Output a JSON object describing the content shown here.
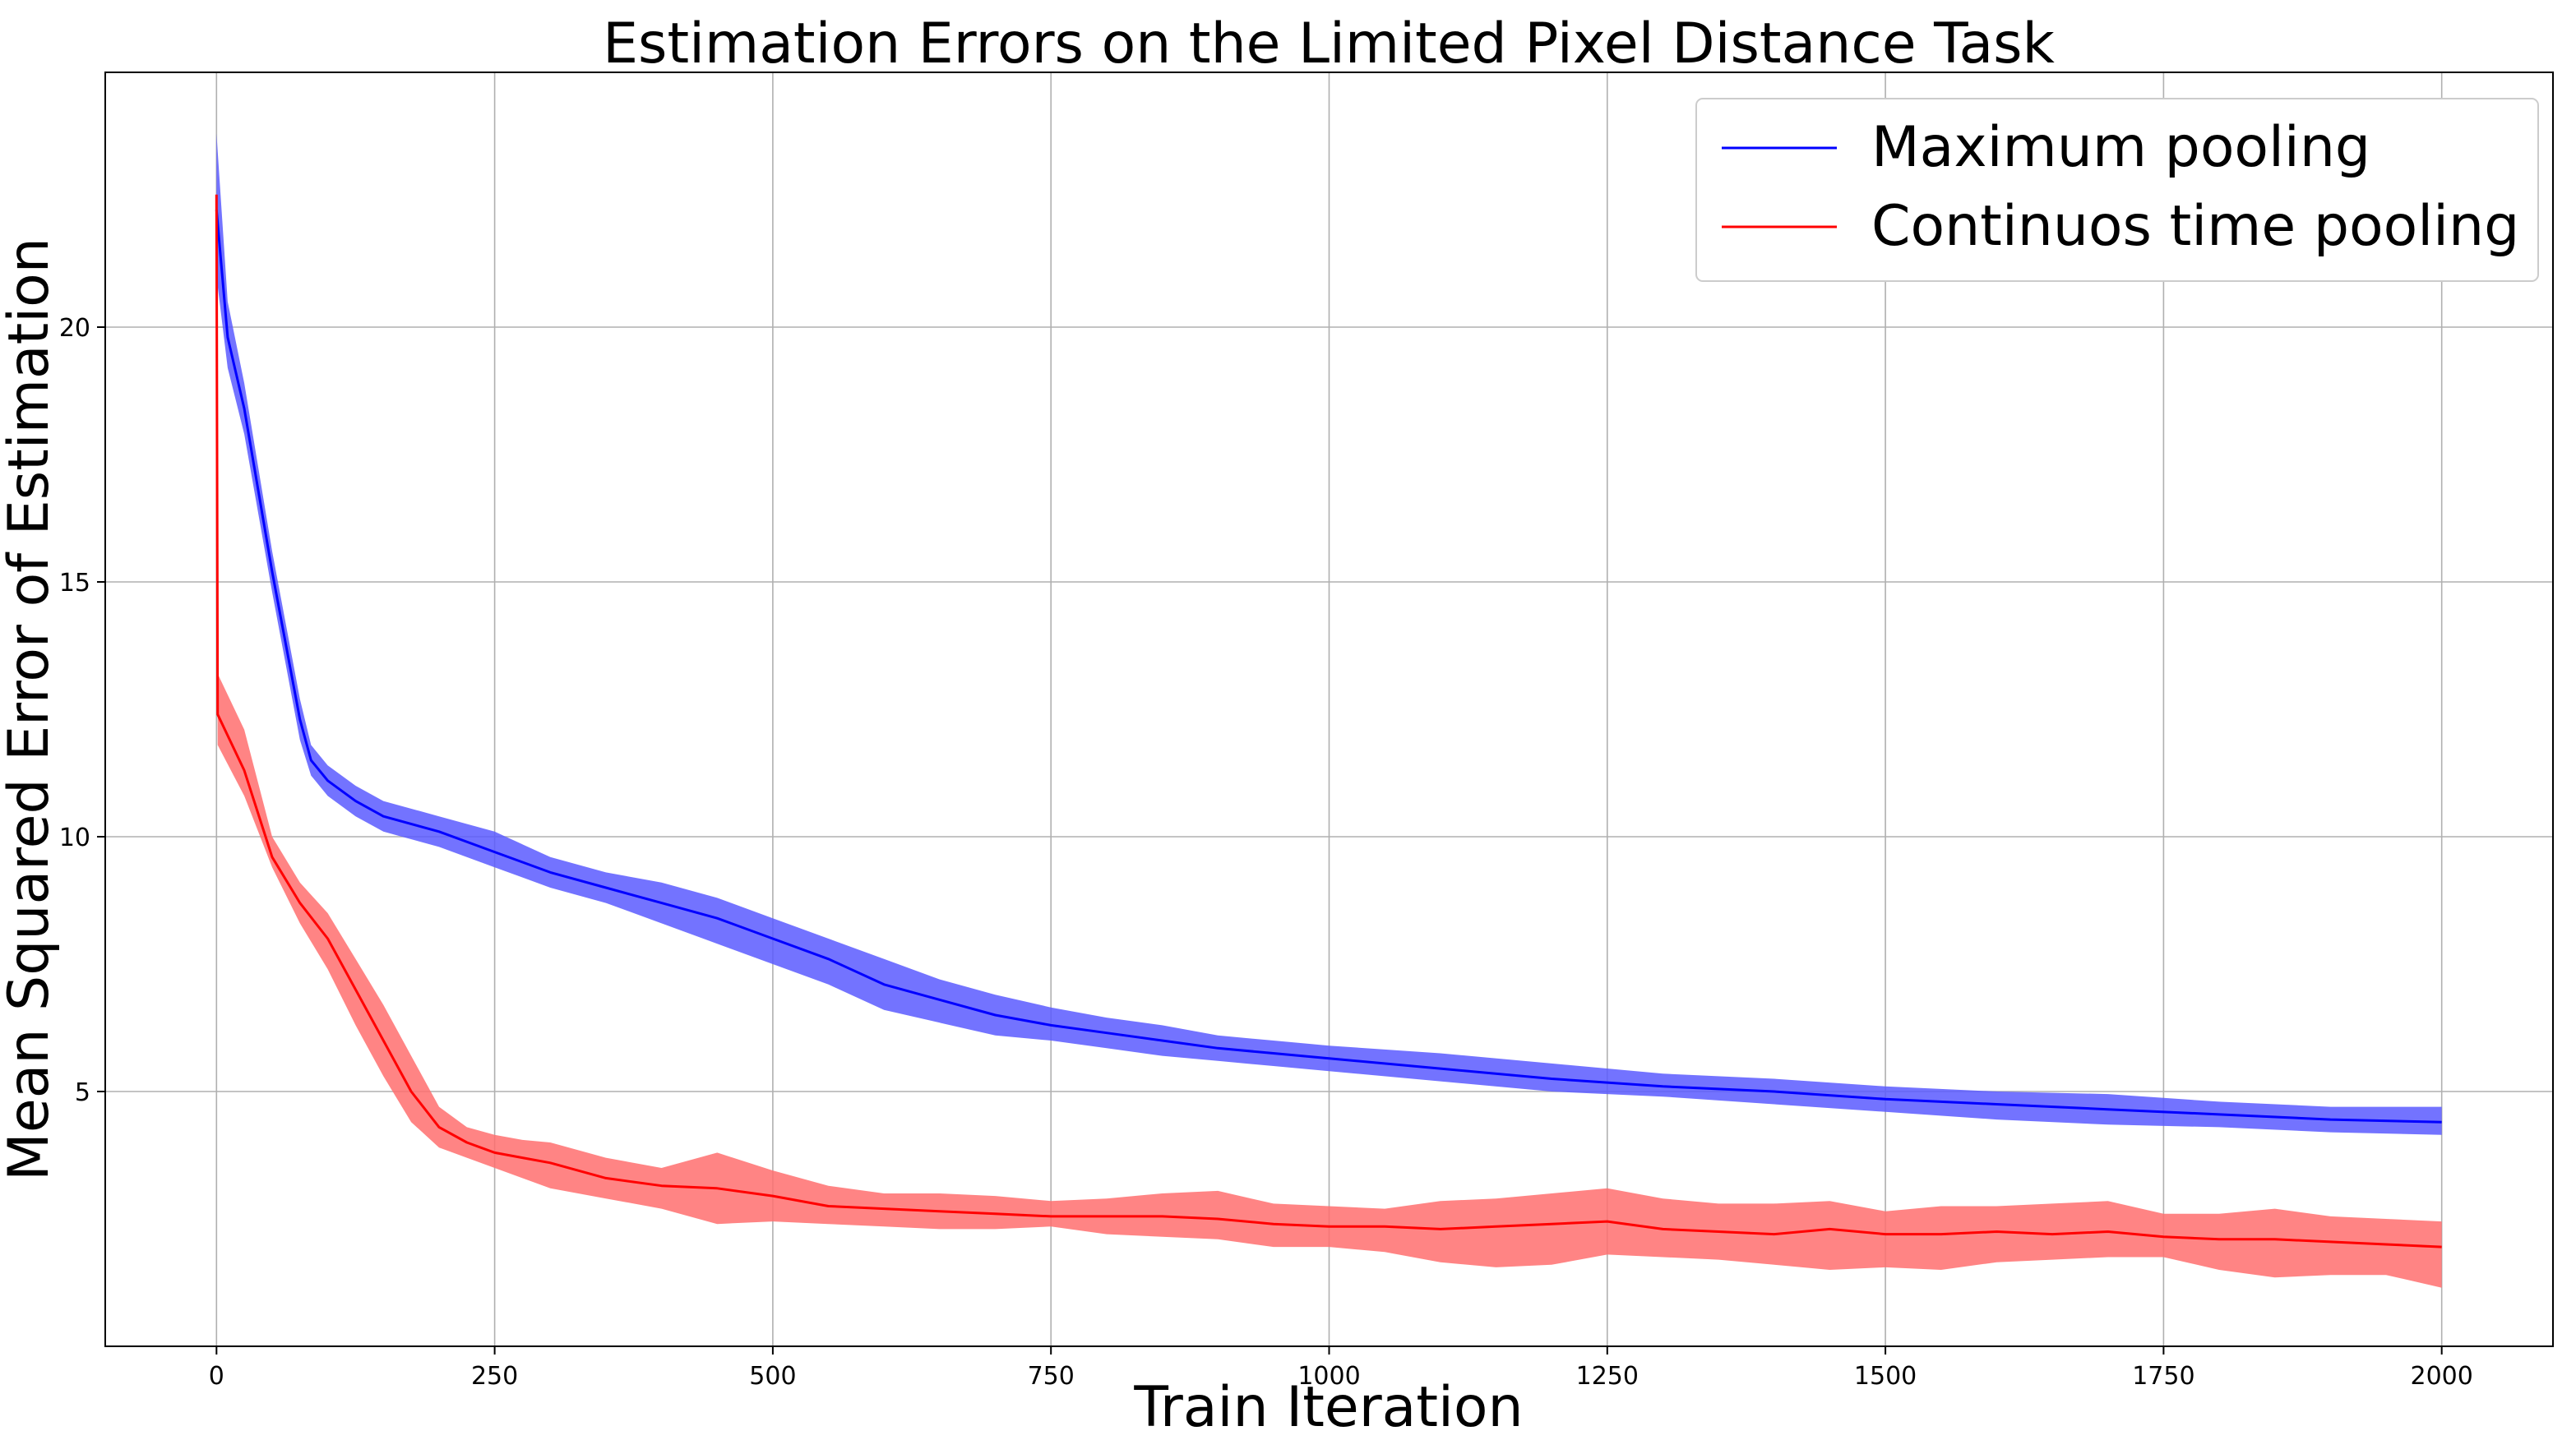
{
  "chart_data": {
    "type": "line",
    "title": "Estimation Errors on the Limited Pixel Distance Task",
    "xlabel": "Train Iteration",
    "ylabel": "Mean Squared Error of Estimation",
    "xlim": [
      -100,
      2100
    ],
    "ylim": [
      0,
      25
    ],
    "xticks": [
      0,
      250,
      500,
      750,
      1000,
      1250,
      1500,
      1750,
      2000
    ],
    "xtick_labels": [
      "0",
      "250",
      "500",
      "750",
      "1000",
      "1250",
      "1500",
      "1750",
      "2000"
    ],
    "yticks": [
      5,
      10,
      15,
      20
    ],
    "ytick_labels": [
      "5",
      "10",
      "15",
      "20"
    ],
    "grid": true,
    "legend_position": "top-right",
    "series": [
      {
        "name": "Maximum pooling",
        "color": "#0000ff",
        "band_color": "#5a5aff",
        "x": [
          0,
          10,
          25,
          50,
          75,
          85,
          100,
          125,
          150,
          200,
          250,
          300,
          350,
          400,
          450,
          500,
          550,
          600,
          650,
          700,
          750,
          800,
          850,
          900,
          950,
          1000,
          1100,
          1200,
          1300,
          1400,
          1500,
          1600,
          1700,
          1800,
          1900,
          2000
        ],
        "mean": [
          22.3,
          19.8,
          18.4,
          15.2,
          12.3,
          11.5,
          11.1,
          10.7,
          10.4,
          10.1,
          9.7,
          9.3,
          9.0,
          8.7,
          8.4,
          8.0,
          7.6,
          7.1,
          6.8,
          6.5,
          6.3,
          6.15,
          6.0,
          5.85,
          5.75,
          5.65,
          5.45,
          5.25,
          5.1,
          5.0,
          4.85,
          4.75,
          4.65,
          4.55,
          4.45,
          4.4
        ],
        "lower": [
          21.0,
          19.2,
          17.9,
          14.8,
          11.9,
          11.2,
          10.8,
          10.4,
          10.1,
          9.8,
          9.4,
          9.0,
          8.7,
          8.3,
          7.9,
          7.5,
          7.1,
          6.6,
          6.35,
          6.1,
          6.0,
          5.85,
          5.7,
          5.6,
          5.5,
          5.4,
          5.2,
          5.0,
          4.9,
          4.75,
          4.6,
          4.45,
          4.35,
          4.3,
          4.2,
          4.15
        ],
        "upper": [
          23.8,
          20.5,
          18.9,
          15.6,
          12.7,
          11.8,
          11.4,
          11.0,
          10.7,
          10.4,
          10.1,
          9.6,
          9.3,
          9.1,
          8.8,
          8.4,
          8.0,
          7.6,
          7.2,
          6.9,
          6.65,
          6.45,
          6.3,
          6.1,
          6.0,
          5.9,
          5.75,
          5.55,
          5.35,
          5.25,
          5.1,
          5.0,
          4.95,
          4.8,
          4.7,
          4.7
        ]
      },
      {
        "name": "Continuos time pooling",
        "color": "#ff0000",
        "band_color": "#ff6e6e",
        "x": [
          0,
          1,
          25,
          50,
          75,
          100,
          125,
          150,
          175,
          200,
          225,
          250,
          275,
          300,
          350,
          400,
          450,
          500,
          550,
          600,
          650,
          700,
          750,
          800,
          850,
          900,
          950,
          1000,
          1050,
          1100,
          1150,
          1200,
          1250,
          1300,
          1350,
          1400,
          1450,
          1500,
          1550,
          1600,
          1650,
          1700,
          1750,
          1800,
          1850,
          1900,
          1950,
          2000
        ],
        "mean": [
          22.6,
          12.4,
          11.3,
          9.6,
          8.7,
          8.0,
          7.0,
          6.0,
          5.0,
          4.3,
          4.0,
          3.8,
          3.7,
          3.6,
          3.3,
          3.15,
          3.1,
          2.95,
          2.75,
          2.7,
          2.65,
          2.6,
          2.55,
          2.55,
          2.55,
          2.5,
          2.4,
          2.35,
          2.35,
          2.3,
          2.35,
          2.4,
          2.45,
          2.3,
          2.25,
          2.2,
          2.3,
          2.2,
          2.2,
          2.25,
          2.2,
          2.25,
          2.15,
          2.1,
          2.1,
          2.05,
          2.0,
          1.95
        ],
        "lower": [
          22.6,
          11.8,
          10.8,
          9.4,
          8.3,
          7.4,
          6.3,
          5.3,
          4.4,
          3.9,
          3.7,
          3.5,
          3.3,
          3.1,
          2.9,
          2.7,
          2.4,
          2.45,
          2.4,
          2.35,
          2.3,
          2.3,
          2.35,
          2.2,
          2.15,
          2.1,
          1.95,
          1.95,
          1.85,
          1.65,
          1.55,
          1.6,
          1.8,
          1.75,
          1.7,
          1.6,
          1.5,
          1.55,
          1.5,
          1.65,
          1.7,
          1.75,
          1.75,
          1.5,
          1.35,
          1.4,
          1.4,
          1.15
        ],
        "upper": [
          22.6,
          13.2,
          12.1,
          10.0,
          9.1,
          8.5,
          7.6,
          6.7,
          5.7,
          4.7,
          4.3,
          4.15,
          4.05,
          4.0,
          3.7,
          3.5,
          3.8,
          3.45,
          3.15,
          3.0,
          3.0,
          2.95,
          2.85,
          2.9,
          3.0,
          3.05,
          2.8,
          2.75,
          2.7,
          2.85,
          2.9,
          3.0,
          3.1,
          2.9,
          2.8,
          2.8,
          2.85,
          2.65,
          2.75,
          2.75,
          2.8,
          2.85,
          2.6,
          2.6,
          2.7,
          2.55,
          2.5,
          2.45
        ]
      }
    ]
  }
}
